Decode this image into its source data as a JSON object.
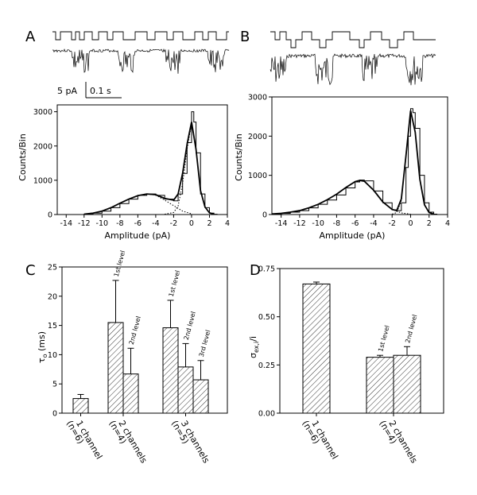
{
  "panels": {
    "a": "A",
    "b": "B",
    "c": "C",
    "d": "D"
  },
  "scale_bar": {
    "amp": "5 pA",
    "time": "0.1 s"
  },
  "chart_data": [
    {
      "id": "A",
      "type": "line",
      "xlabel": "Amplitude (pA)",
      "ylabel": "Counts/Bin",
      "xlim": [
        -15,
        4
      ],
      "ylim": [
        0,
        3200
      ],
      "xticks": [
        -14,
        -12,
        -10,
        -8,
        -6,
        -4,
        -2,
        0,
        2,
        4
      ],
      "yticks": [
        0,
        1000,
        2000,
        3000
      ],
      "series": [
        {
          "style": "histogram",
          "x": [
            -12,
            -11,
            -10,
            -9,
            -8,
            -7,
            -6,
            -5,
            -4,
            -3,
            -2,
            -1.5,
            -1,
            -0.5,
            0,
            0.25,
            0.5,
            1,
            1.5,
            2,
            2.5
          ],
          "values": [
            10,
            40,
            100,
            200,
            320,
            450,
            560,
            600,
            560,
            450,
            400,
            600,
            1200,
            2100,
            3000,
            2700,
            1800,
            600,
            200,
            40,
            10
          ]
        },
        {
          "style": "solid",
          "x": [
            -12,
            -11,
            -10,
            -9,
            -8,
            -7,
            -6,
            -5,
            -4,
            -3,
            -2,
            -1.5,
            -1,
            -0.5,
            0,
            0.5,
            1,
            1.5,
            2,
            2.5
          ],
          "values": [
            10,
            40,
            100,
            200,
            330,
            450,
            550,
            600,
            580,
            470,
            420,
            600,
            1200,
            2050,
            2700,
            1900,
            700,
            220,
            50,
            10
          ]
        },
        {
          "style": "dotted",
          "x": [
            -12,
            -11,
            -10,
            -9,
            -8,
            -7,
            -6,
            -5,
            -4,
            -3,
            -2,
            -1,
            0
          ],
          "values": [
            10,
            40,
            100,
            200,
            330,
            450,
            550,
            600,
            570,
            420,
            260,
            100,
            20
          ]
        },
        {
          "style": "dotted",
          "x": [
            -3,
            -2,
            -1.5,
            -1,
            -0.5,
            0,
            0.5,
            1,
            1.5,
            2,
            2.5
          ],
          "values": [
            10,
            60,
            250,
            900,
            1900,
            2650,
            1900,
            700,
            220,
            50,
            10
          ]
        }
      ]
    },
    {
      "id": "B",
      "type": "line",
      "xlabel": "Amplitude (pA)",
      "ylabel": "Counts/Bin",
      "xlim": [
        -15,
        4
      ],
      "ylim": [
        0,
        3000
      ],
      "xticks": [
        -14,
        -12,
        -10,
        -8,
        -6,
        -4,
        -2,
        0,
        2,
        4
      ],
      "yticks": [
        0,
        1000,
        2000,
        3000
      ],
      "series": [
        {
          "style": "histogram",
          "x": [
            -15,
            -14,
            -13,
            -12,
            -11,
            -10,
            -9,
            -8,
            -7,
            -6,
            -5.5,
            -5,
            -4,
            -3,
            -2,
            -1.5,
            -1,
            -0.5,
            -0.25,
            0,
            0.25,
            0.5,
            1,
            1.5,
            2,
            2.5
          ],
          "values": [
            15,
            30,
            60,
            100,
            170,
            260,
            370,
            500,
            680,
            830,
            880,
            860,
            600,
            300,
            120,
            100,
            300,
            1200,
            2000,
            2700,
            2600,
            2200,
            1000,
            300,
            60,
            10
          ]
        },
        {
          "style": "solid",
          "x": [
            -15,
            -14,
            -13,
            -12,
            -11,
            -10,
            -9,
            -8,
            -7,
            -6,
            -5.5,
            -5,
            -4,
            -3,
            -2,
            -1.5,
            -1,
            -0.5,
            0,
            0.5,
            1,
            1.5,
            2,
            2.5
          ],
          "values": [
            15,
            30,
            60,
            100,
            170,
            260,
            380,
            520,
            690,
            840,
            870,
            850,
            620,
            320,
            130,
            100,
            400,
            1500,
            2650,
            2100,
            900,
            250,
            50,
            10
          ]
        },
        {
          "style": "dotted",
          "x": [
            -15,
            -14,
            -13,
            -12,
            -11,
            -10,
            -9,
            -8,
            -7,
            -6,
            -5.5,
            -5,
            -4,
            -3,
            -2,
            -1,
            0
          ],
          "values": [
            15,
            30,
            60,
            100,
            170,
            260,
            380,
            520,
            690,
            840,
            870,
            850,
            620,
            320,
            130,
            40,
            10
          ]
        },
        {
          "style": "dotted",
          "x": [
            -2,
            -1.5,
            -1,
            -0.5,
            0,
            0.5,
            1,
            1.5,
            2,
            2.5
          ],
          "values": [
            10,
            50,
            350,
            1500,
            2650,
            2100,
            900,
            250,
            50,
            10
          ]
        }
      ]
    },
    {
      "id": "C",
      "type": "bar",
      "ylabel": "τ",
      "ylabel_sub": "o",
      "ylabel_unit": " (ms)",
      "ylim": [
        0,
        25
      ],
      "yticks": [
        0,
        5,
        10,
        15,
        20,
        25
      ],
      "groups": [
        {
          "label": "1 channel",
          "n": "(n=6)",
          "bars": [
            {
              "value": 2.5,
              "error": 0.7,
              "level": ""
            }
          ]
        },
        {
          "label": "2 channels",
          "n": "(n=4)",
          "bars": [
            {
              "value": 15.5,
              "error": 7.2,
              "level": "1st level"
            },
            {
              "value": 6.7,
              "error": 4.4,
              "level": "2nd level"
            }
          ]
        },
        {
          "label": "3 channels",
          "n": "(n=5)",
          "bars": [
            {
              "value": 14.6,
              "error": 4.7,
              "level": "1st level"
            },
            {
              "value": 7.9,
              "error": 4.0,
              "level": "2nd level"
            },
            {
              "value": 5.7,
              "error": 3.3,
              "level": "3rd level"
            }
          ]
        }
      ]
    },
    {
      "id": "D",
      "type": "bar",
      "ylabel": "σ",
      "ylabel_sub": "ex,i",
      "ylabel_unit": "/i",
      "ylim": [
        0,
        0.75
      ],
      "yticks": [
        0.0,
        0.25,
        0.5,
        0.75
      ],
      "groups": [
        {
          "label": "1 channel",
          "n": "(n=6)",
          "bars": [
            {
              "value": 0.67,
              "error": 0.01,
              "level": ""
            }
          ]
        },
        {
          "label": "2 channels",
          "n": "(n=4)",
          "bars": [
            {
              "value": 0.29,
              "error": 0.01,
              "level": "1st level"
            },
            {
              "value": 0.3,
              "error": 0.045,
              "level": "2nd level"
            }
          ]
        }
      ]
    }
  ]
}
